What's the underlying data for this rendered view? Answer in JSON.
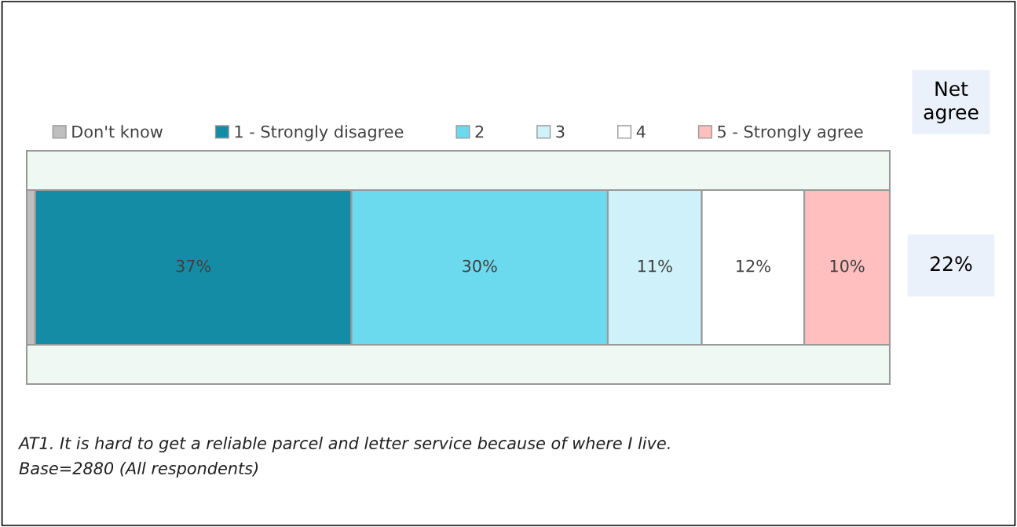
{
  "chart_data": {
    "type": "bar",
    "orientation": "horizontal",
    "stacked": true,
    "categories": [
      null
    ],
    "xlim": [
      0,
      101
    ],
    "series": [
      {
        "name": "Don't know",
        "color": "#bfbfbf",
        "values": [
          1
        ],
        "value_labels": [
          null
        ]
      },
      {
        "name": "1 - Strongly disagree",
        "color": "#158ca5",
        "values": [
          37
        ],
        "value_labels": [
          "37%"
        ]
      },
      {
        "name": "2",
        "color": "#6cdaee",
        "values": [
          30
        ],
        "value_labels": [
          "30%"
        ]
      },
      {
        "name": "3",
        "color": "#cff1f9",
        "values": [
          11
        ],
        "value_labels": [
          "11%"
        ]
      },
      {
        "name": "4",
        "color": "#ffffff",
        "values": [
          12
        ],
        "value_labels": [
          "12%"
        ]
      },
      {
        "name": "5 - Strongly agree",
        "color": "#ffbfbf",
        "values": [
          10
        ],
        "value_labels": [
          "10%"
        ]
      }
    ],
    "legend": "top",
    "tick_labels": false,
    "annotations": [
      "Net agree",
      "22%",
      "AT1. It is hard to get a reliable parcel and letter service because of where I live.",
      "Base=2880 (All respondents)"
    ]
  }
}
